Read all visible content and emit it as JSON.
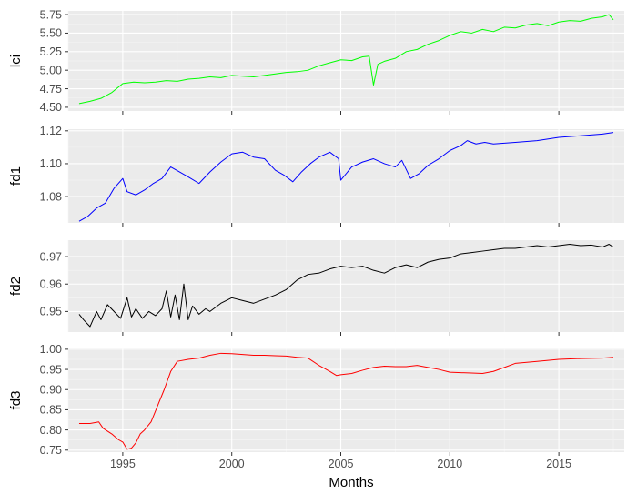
{
  "chart_data": {
    "type": "line",
    "layout": "faceted-vertical",
    "xlabel": "Months",
    "xlim": [
      1992.5,
      2018.0
    ],
    "x_ticks": [
      1995,
      2000,
      2005,
      2010,
      2015
    ],
    "x_tick_labels": [
      "1995",
      "2000",
      "2005",
      "2010",
      "2015"
    ],
    "grid": true,
    "legend": "none",
    "series": [
      {
        "ylabel": "lci",
        "color": "#00ff00",
        "ylim": [
          4.45,
          5.8
        ],
        "y_ticks": [
          4.5,
          4.75,
          5.0,
          5.25,
          5.5,
          5.75
        ],
        "y_tick_labels": [
          "4.50",
          "4.75",
          "5.00",
          "5.25",
          "5.50",
          "5.75"
        ],
        "x": [
          1993.0,
          1993.5,
          1994.0,
          1994.5,
          1995.0,
          1995.5,
          1996.0,
          1996.5,
          1997.0,
          1997.5,
          1998.0,
          1998.5,
          1999.0,
          1999.5,
          2000.0,
          2000.5,
          2001.0,
          2001.5,
          2002.0,
          2002.5,
          2003.0,
          2003.5,
          2004.0,
          2004.5,
          2005.0,
          2005.5,
          2006.0,
          2006.3,
          2006.5,
          2006.7,
          2007.0,
          2007.5,
          2008.0,
          2008.5,
          2009.0,
          2009.5,
          2010.0,
          2010.5,
          2011.0,
          2011.5,
          2012.0,
          2012.5,
          2013.0,
          2013.5,
          2014.0,
          2014.5,
          2015.0,
          2015.5,
          2016.0,
          2016.5,
          2017.0,
          2017.3,
          2017.5
        ],
        "y": [
          4.55,
          4.58,
          4.62,
          4.7,
          4.82,
          4.84,
          4.83,
          4.84,
          4.86,
          4.85,
          4.88,
          4.89,
          4.91,
          4.9,
          4.93,
          4.92,
          4.91,
          4.93,
          4.95,
          4.97,
          4.98,
          5.0,
          5.06,
          5.1,
          5.14,
          5.13,
          5.18,
          5.19,
          4.8,
          5.08,
          5.12,
          5.16,
          5.25,
          5.28,
          5.35,
          5.4,
          5.47,
          5.52,
          5.5,
          5.55,
          5.52,
          5.58,
          5.57,
          5.61,
          5.63,
          5.6,
          5.65,
          5.67,
          5.66,
          5.7,
          5.72,
          5.75,
          5.68
        ]
      },
      {
        "ylabel": "fd1",
        "color": "#0000ff",
        "ylim": [
          1.064,
          1.121
        ],
        "y_ticks": [
          1.08,
          1.1,
          1.12
        ],
        "y_tick_labels": [
          "1.08",
          "1.10",
          "1.12"
        ],
        "x": [
          1993.0,
          1993.4,
          1993.8,
          1994.2,
          1994.6,
          1995.0,
          1995.2,
          1995.6,
          1996.0,
          1996.4,
          1996.8,
          1997.2,
          1997.6,
          1998.0,
          1998.5,
          1999.0,
          1999.5,
          2000.0,
          2000.5,
          2001.0,
          2001.5,
          2002.0,
          2002.4,
          2002.8,
          2003.2,
          2003.6,
          2004.0,
          2004.5,
          2004.9,
          2005.0,
          2005.5,
          2006.0,
          2006.5,
          2007.0,
          2007.5,
          2007.8,
          2008.2,
          2008.6,
          2009.0,
          2009.5,
          2010.0,
          2010.5,
          2010.8,
          2011.2,
          2011.6,
          2012.0,
          2013.0,
          2014.0,
          2015.0,
          2016.0,
          2017.0,
          2017.5
        ],
        "y": [
          1.065,
          1.068,
          1.073,
          1.076,
          1.085,
          1.091,
          1.083,
          1.081,
          1.084,
          1.088,
          1.091,
          1.098,
          1.095,
          1.092,
          1.088,
          1.095,
          1.101,
          1.106,
          1.107,
          1.104,
          1.103,
          1.096,
          1.093,
          1.089,
          1.095,
          1.1,
          1.104,
          1.107,
          1.103,
          1.09,
          1.098,
          1.101,
          1.103,
          1.1,
          1.098,
          1.102,
          1.091,
          1.094,
          1.099,
          1.103,
          1.108,
          1.111,
          1.114,
          1.112,
          1.113,
          1.112,
          1.113,
          1.114,
          1.116,
          1.117,
          1.118,
          1.119
        ]
      },
      {
        "ylabel": "fd2",
        "color": "#000000",
        "ylim": [
          0.9425,
          0.976
        ],
        "y_ticks": [
          0.95,
          0.96,
          0.97
        ],
        "y_tick_labels": [
          "0.95",
          "0.96",
          "0.97"
        ],
        "x": [
          1993.0,
          1993.2,
          1993.5,
          1993.8,
          1994.0,
          1994.3,
          1994.6,
          1994.9,
          1995.2,
          1995.4,
          1995.6,
          1995.9,
          1996.2,
          1996.5,
          1996.8,
          1997.0,
          1997.2,
          1997.4,
          1997.6,
          1997.8,
          1998.0,
          1998.2,
          1998.5,
          1998.8,
          1999.0,
          1999.5,
          2000.0,
          2000.5,
          2001.0,
          2001.5,
          2002.0,
          2002.5,
          2003.0,
          2003.5,
          2004.0,
          2004.5,
          2005.0,
          2005.5,
          2006.0,
          2006.5,
          2007.0,
          2007.5,
          2008.0,
          2008.5,
          2009.0,
          2009.5,
          2010.0,
          2010.5,
          2011.0,
          2011.5,
          2012.0,
          2012.5,
          2013.0,
          2013.5,
          2014.0,
          2014.5,
          2015.0,
          2015.5,
          2016.0,
          2016.5,
          2017.0,
          2017.3,
          2017.5
        ],
        "y": [
          0.949,
          0.947,
          0.9445,
          0.95,
          0.947,
          0.9525,
          0.95,
          0.9475,
          0.955,
          0.948,
          0.951,
          0.9475,
          0.95,
          0.9485,
          0.951,
          0.9575,
          0.948,
          0.956,
          0.947,
          0.96,
          0.947,
          0.952,
          0.949,
          0.951,
          0.95,
          0.953,
          0.955,
          0.954,
          0.953,
          0.9545,
          0.956,
          0.958,
          0.9615,
          0.9635,
          0.964,
          0.9655,
          0.9665,
          0.966,
          0.9665,
          0.965,
          0.964,
          0.966,
          0.967,
          0.966,
          0.968,
          0.969,
          0.9695,
          0.971,
          0.9715,
          0.972,
          0.9725,
          0.973,
          0.973,
          0.9735,
          0.974,
          0.9735,
          0.974,
          0.9745,
          0.974,
          0.9742,
          0.9735,
          0.9745,
          0.9735
        ]
      },
      {
        "ylabel": "fd3",
        "color": "#ff0000",
        "ylim": [
          0.745,
          1.002
        ],
        "y_ticks": [
          0.75,
          0.8,
          0.85,
          0.9,
          0.95,
          1.0
        ],
        "y_tick_labels": [
          "0.75",
          "0.80",
          "0.85",
          "0.90",
          "0.95",
          "1.00"
        ],
        "x": [
          1993.0,
          1993.5,
          1993.9,
          1994.1,
          1994.5,
          1994.8,
          1995.0,
          1995.2,
          1995.4,
          1995.6,
          1995.8,
          1996.0,
          1996.3,
          1996.6,
          1996.9,
          1997.2,
          1997.5,
          1998.0,
          1998.5,
          1999.0,
          1999.5,
          2000.0,
          2000.5,
          2001.0,
          2001.5,
          2002.0,
          2002.5,
          2003.0,
          2003.5,
          2004.0,
          2004.5,
          2004.8,
          2005.0,
          2005.5,
          2006.0,
          2006.5,
          2007.0,
          2007.5,
          2008.0,
          2008.5,
          2009.0,
          2009.5,
          2010.0,
          2010.5,
          2011.0,
          2011.5,
          2012.0,
          2012.5,
          2013.0,
          2014.0,
          2015.0,
          2016.0,
          2017.0,
          2017.5
        ],
        "y": [
          0.816,
          0.816,
          0.82,
          0.804,
          0.79,
          0.776,
          0.77,
          0.752,
          0.755,
          0.768,
          0.79,
          0.8,
          0.82,
          0.86,
          0.9,
          0.945,
          0.97,
          0.975,
          0.978,
          0.985,
          0.99,
          0.989,
          0.987,
          0.985,
          0.985,
          0.984,
          0.983,
          0.98,
          0.978,
          0.96,
          0.945,
          0.935,
          0.937,
          0.94,
          0.948,
          0.955,
          0.958,
          0.957,
          0.957,
          0.96,
          0.955,
          0.95,
          0.943,
          0.942,
          0.941,
          0.94,
          0.945,
          0.955,
          0.965,
          0.97,
          0.975,
          0.977,
          0.978,
          0.98
        ]
      }
    ]
  }
}
